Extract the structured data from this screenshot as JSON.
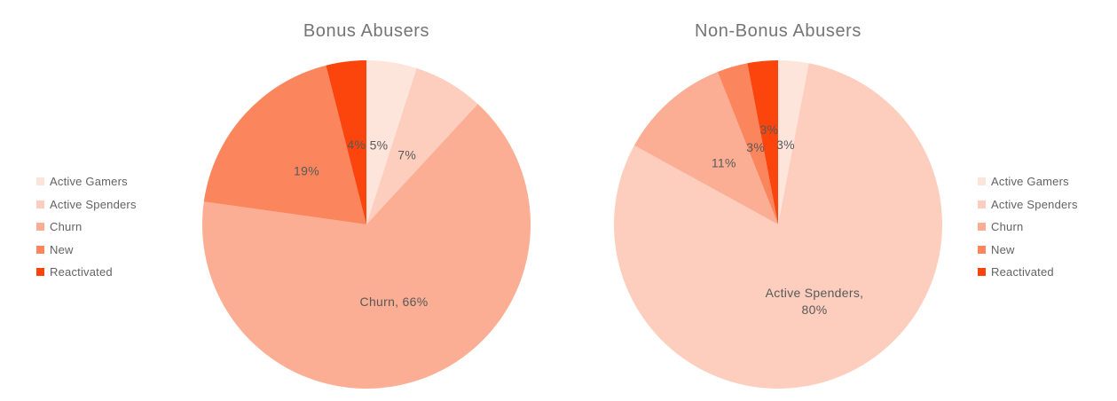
{
  "page": {
    "background_color": "#ffffff",
    "title_text_color": "#757575",
    "data_label_color": "#595959",
    "legend_text_color": "#636363"
  },
  "palette": {
    "Active Gamers": "#fde5dc",
    "Active Spenders": "#fdcebe",
    "Churn": "#fbae94",
    "New": "#fb855c",
    "Reactivated": "#fb450c"
  },
  "legend": {
    "items": [
      "Active Gamers",
      "Active Spenders",
      "Churn",
      "New",
      "Reactivated"
    ]
  },
  "chart_data": [
    {
      "type": "pie",
      "title": "Bonus Abusers",
      "categories": [
        "Active Gamers",
        "Active Spenders",
        "Churn",
        "New",
        "Reactivated"
      ],
      "values": [
        5,
        7,
        66,
        19,
        4
      ],
      "data_labels": [
        "5%",
        "7%",
        "Churn, 66%",
        "19%",
        "4%"
      ],
      "colors": [
        "#fde5dc",
        "#fdcebe",
        "#fbae94",
        "#fb855c",
        "#fb450c"
      ],
      "legend_position": "left",
      "start_angle_deg": 0,
      "direction": "clockwise",
      "label_radius_frac": [
        0.49,
        0.49,
        0.5,
        0.49,
        0.49
      ]
    },
    {
      "type": "pie",
      "title": "Non-Bonus Abusers",
      "categories": [
        "Active Gamers",
        "Active Spenders",
        "Churn",
        "New",
        "Reactivated"
      ],
      "values": [
        3,
        80,
        11,
        3,
        3
      ],
      "data_labels": [
        "3%",
        "Active Spenders,\n80%",
        "11%",
        "3%",
        "3%"
      ],
      "colors": [
        "#fde5dc",
        "#fdcebe",
        "#fbae94",
        "#fb855c",
        "#fb450c"
      ],
      "legend_position": "right",
      "start_angle_deg": 0,
      "direction": "clockwise",
      "label_radius_frac": [
        0.49,
        0.52,
        0.5,
        0.49,
        0.58
      ]
    }
  ]
}
